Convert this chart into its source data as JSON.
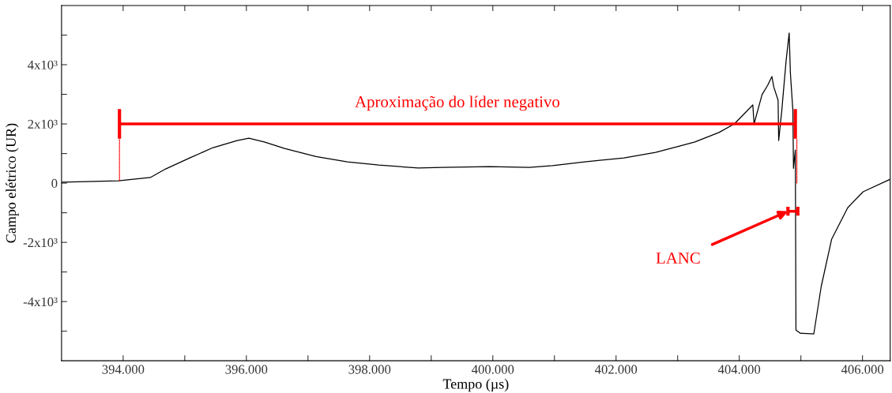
{
  "chart_data": {
    "type": "line",
    "xlabel": "Tempo (µs)",
    "ylabel": "Campo elétrico (UR)",
    "xlim": [
      393000,
      406450
    ],
    "ylim": [
      -6000,
      6000
    ],
    "xticks": [
      {
        "value": 394000,
        "label": "394.000"
      },
      {
        "value": 395000,
        "label": null
      },
      {
        "value": 396000,
        "label": "396.000"
      },
      {
        "value": 397000,
        "label": null
      },
      {
        "value": 398000,
        "label": "398.000"
      },
      {
        "value": 399000,
        "label": null
      },
      {
        "value": 400000,
        "label": "400.000"
      },
      {
        "value": 401000,
        "label": null
      },
      {
        "value": 402000,
        "label": "402.000"
      },
      {
        "value": 403000,
        "label": null
      },
      {
        "value": 404000,
        "label": "404.000"
      },
      {
        "value": 405000,
        "label": null
      },
      {
        "value": 406000,
        "label": "406.000"
      }
    ],
    "yticks": [
      {
        "value": -5000,
        "label": null
      },
      {
        "value": -4000,
        "label": "-4x10³"
      },
      {
        "value": -3000,
        "label": null
      },
      {
        "value": -2000,
        "label": "-2x10³"
      },
      {
        "value": -1000,
        "label": null
      },
      0,
      {
        "value": 1000,
        "label": null
      },
      {
        "value": 2000,
        "label": "2x10³"
      },
      {
        "value": 3000,
        "label": null
      },
      {
        "value": 4000,
        "label": "4x10³"
      },
      {
        "value": 5000,
        "label": null
      }
    ],
    "grid": false,
    "legend": false,
    "marker": "none",
    "line_style": "solid",
    "series": [
      {
        "color": "#000000",
        "x": [
          393000,
          393920,
          394440,
          394690,
          395080,
          395460,
          395850,
          396040,
          396290,
          396620,
          397130,
          397640,
          398150,
          398790,
          399180,
          399950,
          400590,
          400970,
          401490,
          402130,
          402640,
          403030,
          403280,
          403670,
          403920,
          404220,
          404240,
          404370,
          404460,
          404530,
          404560,
          404630,
          404640,
          404690,
          404760,
          404810,
          404830,
          404870,
          404880,
          404910,
          404920,
          404990,
          405210,
          405330,
          405500,
          405760,
          406010,
          406450
        ],
        "values": [
          30,
          80,
          190,
          480,
          850,
          1200,
          1440,
          1520,
          1390,
          1170,
          900,
          720,
          610,
          510,
          530,
          560,
          530,
          590,
          720,
          850,
          1040,
          1250,
          1390,
          1710,
          2000,
          2640,
          2000,
          2990,
          3300,
          3600,
          3250,
          2800,
          1440,
          2450,
          4130,
          5070,
          3710,
          2450,
          500,
          1120,
          -4960,
          -5070,
          -5090,
          -3490,
          -1890,
          -830,
          -290,
          130
        ]
      },
      {
        "color": "#ff0000",
        "x": [
          393940,
          404910
        ],
        "values": [
          2000,
          2000
        ],
        "errors": [
          500,
          500
        ]
      },
      {
        "color": "#ff0000",
        "x": [
          404790,
          404950
        ],
        "values": [
          -950,
          -950
        ],
        "errors": [
          150,
          150
        ]
      },
      {
        "color": "#ff0000",
        "line_style": "dotted",
        "x": [
          393940,
          393940
        ],
        "values": [
          80,
          1500
        ]
      },
      {
        "color": "#ff0000",
        "line_style": "dotted",
        "x": [
          404935,
          404935
        ],
        "values": [
          0,
          1500
        ]
      }
    ],
    "annotations": [
      {
        "text": "Aproximação do líder negativo",
        "x": 399425,
        "y": 2000
      },
      {
        "text": "LANC",
        "x": 404790,
        "y": -950
      }
    ]
  }
}
